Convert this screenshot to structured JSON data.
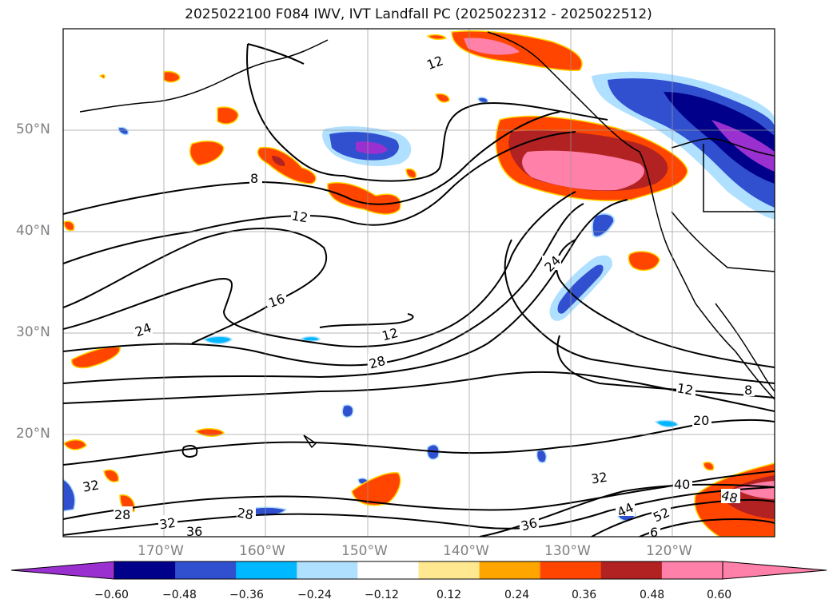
{
  "title": "2025022100 F084 IWV, IVT Landfall PC (2025022312 - 2025022512)",
  "lat_labels": [
    "50°N",
    "40°N",
    "30°N",
    "20°N"
  ],
  "lon_labels": [
    "170°W",
    "160°W",
    "150°W",
    "140°W",
    "130°W",
    "120°W"
  ],
  "contour_labels": [
    "12",
    "8",
    "12",
    "16",
    "24",
    "12",
    "28",
    "24",
    "12",
    "8",
    "20",
    "32",
    "32",
    "28",
    "32",
    "36",
    "28",
    "36",
    "40",
    "44",
    "52",
    "48",
    "6"
  ],
  "colorbar": {
    "ticks": [
      "−0.60",
      "−0.48",
      "−0.36",
      "−0.24",
      "−0.12",
      "0.12",
      "0.24",
      "0.36",
      "0.48",
      "0.60"
    ],
    "colors": [
      "#9b30d0",
      "#00008b",
      "#3050d0",
      "#00b8ff",
      "#b0e0ff",
      "#ffffff",
      "#ffe890",
      "#ffa500",
      "#ff4500",
      "#b22222",
      "#ff80a8",
      "#ff80a8"
    ]
  }
}
